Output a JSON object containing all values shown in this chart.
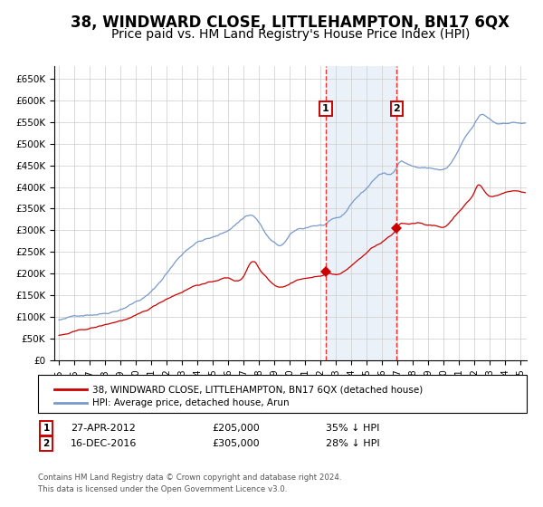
{
  "title": "38, WINDWARD CLOSE, LITTLEHAMPTON, BN17 6QX",
  "subtitle": "Price paid vs. HM Land Registry's House Price Index (HPI)",
  "title_fontsize": 12,
  "subtitle_fontsize": 10,
  "hpi_color": "#7799cc",
  "price_color": "#cc0000",
  "marker_color": "#cc0000",
  "bg_fill": "#ccddf0",
  "dashed_color": "#ee3333",
  "transaction1_year": 2012.32,
  "transaction1_price": 205000,
  "transaction2_year": 2016.96,
  "transaction2_price": 305000,
  "legend_line1": "38, WINDWARD CLOSE, LITTLEHAMPTON, BN17 6QX (detached house)",
  "legend_line2": "HPI: Average price, detached house, Arun",
  "footer1": "Contains HM Land Registry data © Crown copyright and database right 2024.",
  "footer2": "This data is licensed under the Open Government Licence v3.0.",
  "ylim": [
    0,
    680000
  ],
  "xlim_start": 1994.7,
  "xlim_end": 2025.4,
  "yticks": [
    0,
    50000,
    100000,
    150000,
    200000,
    250000,
    300000,
    350000,
    400000,
    450000,
    500000,
    550000,
    600000,
    650000
  ],
  "ytick_labels": [
    "£0",
    "£50K",
    "£100K",
    "£150K",
    "£200K",
    "£250K",
    "£300K",
    "£350K",
    "£400K",
    "£450K",
    "£500K",
    "£550K",
    "£600K",
    "£650K"
  ],
  "xtick_years": [
    1995,
    1996,
    1997,
    1998,
    1999,
    2000,
    2001,
    2002,
    2003,
    2004,
    2005,
    2006,
    2007,
    2008,
    2009,
    2010,
    2011,
    2012,
    2013,
    2014,
    2015,
    2016,
    2017,
    2018,
    2019,
    2020,
    2021,
    2022,
    2023,
    2024,
    2025
  ]
}
